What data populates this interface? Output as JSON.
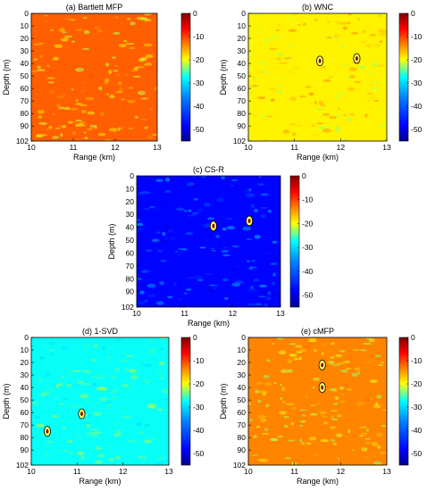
{
  "chart_data": [
    {
      "type": "heatmap",
      "title": "(a) Bartlett MFP",
      "xlabel": "Range (km)",
      "ylabel": "Depth (m)",
      "xlim": [
        10,
        13
      ],
      "ylim": [
        0,
        102
      ],
      "xticks": [
        "10",
        "11",
        "12",
        "13"
      ],
      "yticks": [
        "0",
        "10",
        "20",
        "30",
        "40",
        "50",
        "60",
        "70",
        "80",
        "90",
        "102"
      ],
      "colorbar": {
        "ticks": [
          "0",
          "-10",
          "-20",
          "-30",
          "-40",
          "-50"
        ],
        "range": [
          -55,
          0
        ]
      },
      "background_level": -12,
      "texture_level": -18,
      "markers": []
    },
    {
      "type": "heatmap",
      "title": "(b) WNC",
      "xlabel": "Range (km)",
      "ylabel": "Depth (m)",
      "xlim": [
        10,
        13
      ],
      "ylim": [
        0,
        102
      ],
      "xticks": [
        "10",
        "11",
        "12",
        "13"
      ],
      "yticks": [
        "0",
        "10",
        "20",
        "30",
        "40",
        "50",
        "60",
        "70",
        "80",
        "90",
        "102"
      ],
      "colorbar": {
        "ticks": [
          "0",
          "-10",
          "-20",
          "-30",
          "-40",
          "-50"
        ],
        "range": [
          -55,
          0
        ]
      },
      "background_level": -20,
      "texture_level": -20,
      "markers": [
        {
          "range_km": 11.55,
          "depth_m": 38
        },
        {
          "range_km": 12.35,
          "depth_m": 36
        }
      ]
    },
    {
      "type": "heatmap",
      "title": "(c) CS-R",
      "xlabel": "Range (km)",
      "ylabel": "Depth (m)",
      "xlim": [
        10,
        13
      ],
      "ylim": [
        0,
        102
      ],
      "xticks": [
        "10",
        "11",
        "12",
        "13"
      ],
      "yticks": [
        "0",
        "10",
        "20",
        "30",
        "40",
        "50",
        "60",
        "70",
        "80",
        "90",
        "102"
      ],
      "colorbar": {
        "ticks": [
          "0",
          "-10",
          "-20",
          "-30",
          "-40",
          "-50"
        ],
        "range": [
          -55,
          0
        ]
      },
      "background_level": -48,
      "texture_level": -44,
      "markers": [
        {
          "range_km": 11.6,
          "depth_m": 39
        },
        {
          "range_km": 12.35,
          "depth_m": 35
        }
      ]
    },
    {
      "type": "heatmap",
      "title": "(d) 1-SVD",
      "xlabel": "Range (km)",
      "ylabel": "Depth (m)",
      "xlim": [
        10,
        13
      ],
      "ylim": [
        0,
        102
      ],
      "xticks": [
        "10",
        "11",
        "12",
        "13"
      ],
      "yticks": [
        "0",
        "10",
        "20",
        "30",
        "40",
        "50",
        "60",
        "70",
        "80",
        "90",
        "102"
      ],
      "colorbar": {
        "ticks": [
          "0",
          "-10",
          "-20",
          "-30",
          "-40",
          "-50"
        ],
        "range": [
          -55,
          0
        ]
      },
      "background_level": -34,
      "texture_level": -30,
      "markers": [
        {
          "range_km": 11.1,
          "depth_m": 61
        },
        {
          "range_km": 10.35,
          "depth_m": 75
        }
      ]
    },
    {
      "type": "heatmap",
      "title": "(e) cMFP",
      "xlabel": "Range (km)",
      "ylabel": "Depth (m)",
      "xlim": [
        10,
        13
      ],
      "ylim": [
        0,
        102
      ],
      "xticks": [
        "10",
        "11",
        "12",
        "13"
      ],
      "yticks": [
        "0",
        "10",
        "20",
        "30",
        "40",
        "50",
        "60",
        "70",
        "80",
        "90",
        "102"
      ],
      "colorbar": {
        "ticks": [
          "0",
          "-10",
          "-20",
          "-30",
          "-40",
          "-50"
        ],
        "range": [
          -55,
          0
        ]
      },
      "background_level": -14,
      "texture_level": -20,
      "markers": [
        {
          "range_km": 11.6,
          "depth_m": 22
        },
        {
          "range_km": 11.6,
          "depth_m": 40
        }
      ]
    }
  ]
}
